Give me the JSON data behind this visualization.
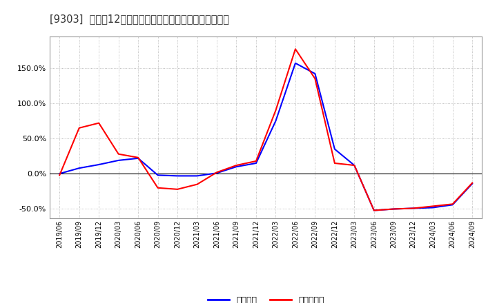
{
  "title": "[9303]  利益の12か月移動合計の対前年同期増減率の推移",
  "legend_label_blue": "経常利益",
  "legend_label_red": "当期純利益",
  "line_color_blue": "#0000ff",
  "line_color_red": "#ff0000",
  "background_color": "#ffffff",
  "grid_color": "#aaaaaa",
  "ylim_min": -0.63,
  "ylim_max": 1.95,
  "yticks": [
    -0.5,
    0.0,
    0.5,
    1.0,
    1.5
  ],
  "xtick_labels": [
    "2019/06",
    "2019/09",
    "2019/12",
    "2020/03",
    "2020/06",
    "2020/09",
    "2020/12",
    "2021/03",
    "2021/06",
    "2021/09",
    "2021/12",
    "2022/03",
    "2022/06",
    "2022/09",
    "2022/12",
    "2023/03",
    "2023/06",
    "2023/09",
    "2023/12",
    "2024/03",
    "2024/06",
    "2024/09"
  ],
  "values_blue": [
    0.002,
    0.08,
    0.13,
    0.19,
    0.22,
    -0.02,
    -0.03,
    -0.03,
    0.01,
    0.1,
    0.15,
    0.75,
    1.57,
    1.42,
    0.35,
    0.12,
    -0.52,
    -0.5,
    -0.49,
    -0.48,
    -0.44,
    -0.14
  ],
  "values_red": [
    -0.02,
    0.65,
    0.72,
    0.28,
    0.23,
    -0.2,
    -0.22,
    -0.15,
    0.02,
    0.12,
    0.18,
    0.9,
    1.77,
    1.35,
    0.15,
    0.12,
    -0.52,
    -0.5,
    -0.49,
    -0.46,
    -0.43,
    -0.13
  ]
}
